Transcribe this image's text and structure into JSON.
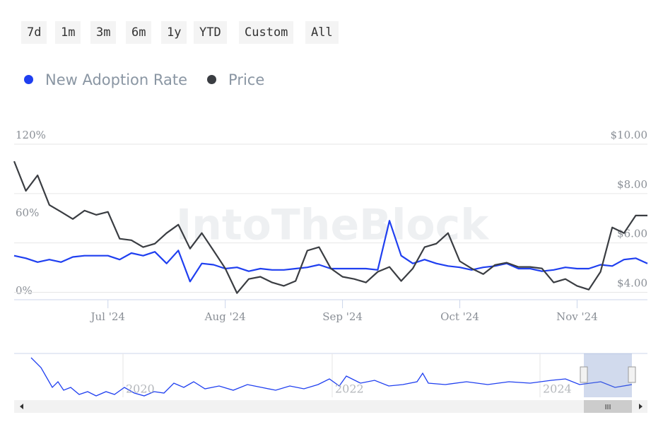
{
  "range_buttons": [
    "7d",
    "1m",
    "3m",
    "6m",
    "1y",
    "YTD",
    "Custom",
    "All"
  ],
  "watermark": "IntoTheBlock",
  "navigator": {
    "labels": [
      "2020",
      "2022",
      "2024"
    ],
    "scroll_handle": "III"
  },
  "chart_data": {
    "type": "line",
    "categories": [
      null,
      null,
      null,
      null,
      null,
      null,
      null,
      null,
      "Jul '24",
      null,
      null,
      null,
      null,
      null,
      null,
      null,
      null,
      null,
      "Aug '24",
      null,
      null,
      null,
      null,
      null,
      null,
      null,
      null,
      null,
      "Sep '24",
      null,
      null,
      null,
      null,
      null,
      null,
      null,
      null,
      null,
      "Oct '24",
      null,
      null,
      null,
      null,
      null,
      null,
      null,
      null,
      null,
      "Nov '24",
      null,
      null,
      null,
      null,
      null,
      null
    ],
    "series": [
      {
        "name": "New Adoption Rate",
        "color": "#1f3ff0",
        "axis": "y",
        "values": [
          34,
          32,
          29,
          31,
          29,
          33,
          34,
          34,
          34,
          31,
          36,
          34,
          37,
          28,
          38,
          14,
          28,
          27,
          24,
          25,
          22,
          24,
          23,
          23,
          24,
          25,
          27,
          24,
          24,
          24,
          24,
          23,
          61,
          34,
          28,
          31,
          28,
          26,
          25,
          23,
          25,
          26,
          28,
          24,
          24,
          22,
          23,
          25,
          24,
          24,
          27,
          26,
          31,
          32,
          28
        ]
      },
      {
        "name": "Price",
        "color": "#3a3d42",
        "axis": "y2",
        "values": [
          9.31,
          8.11,
          8.74,
          7.54,
          7.26,
          6.97,
          7.31,
          7.14,
          7.26,
          6.17,
          6.11,
          5.83,
          5.97,
          6.4,
          6.74,
          5.77,
          6.4,
          5.69,
          4.97,
          3.97,
          4.54,
          4.63,
          4.4,
          4.26,
          4.46,
          5.69,
          5.83,
          4.97,
          4.63,
          4.54,
          4.4,
          4.83,
          5.03,
          4.46,
          4.97,
          5.83,
          5.97,
          6.4,
          5.26,
          4.97,
          4.74,
          5.11,
          5.2,
          5.03,
          5.03,
          4.97,
          4.4,
          4.54,
          4.26,
          4.11,
          4.83,
          6.63,
          6.4,
          7.11,
          7.11
        ]
      }
    ],
    "ylim": [
      0,
      120
    ],
    "yticks": [
      {
        "value": 0,
        "label": "0%"
      },
      {
        "value": 60,
        "label": "60%"
      },
      {
        "value": 120,
        "label": "120%"
      }
    ],
    "y2lim": [
      3.7,
      10
    ],
    "y2ticks": [
      {
        "value": 4,
        "label": "$4.00"
      },
      {
        "value": 6,
        "label": "$6.00"
      },
      {
        "value": 8,
        "label": "$8.00"
      },
      {
        "value": 10,
        "label": "$10.00"
      }
    ],
    "grid": true
  }
}
